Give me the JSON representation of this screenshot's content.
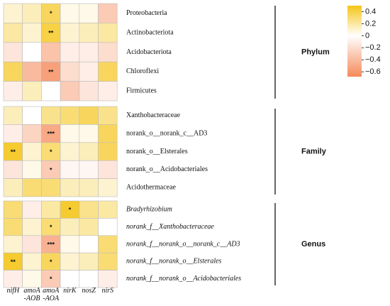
{
  "chart_data": {
    "type": "heatmap",
    "columns": [
      [
        "nifH"
      ],
      [
        "amoA",
        "-AOB"
      ],
      [
        "amoA",
        "-AOA"
      ],
      [
        "nirK"
      ],
      [
        "nosZ"
      ],
      [
        "nirS"
      ]
    ],
    "groups": [
      {
        "name": "Phylum",
        "italic": false,
        "rows": [
          {
            "label": "Proteobacteria",
            "values": [
              0.1,
              0.15,
              0.35,
              0.05,
              0.05,
              -0.3
            ],
            "significance": [
              null,
              null,
              "*",
              null,
              null,
              null
            ]
          },
          {
            "label": "Actinobacteriota",
            "values": [
              0.2,
              0.1,
              0.4,
              0.1,
              0.15,
              0.2
            ],
            "significance": [
              null,
              null,
              "**",
              null,
              null,
              null
            ]
          },
          {
            "label": "Acidobacteriota",
            "values": [
              -0.15,
              0,
              -0.35,
              -0.1,
              -0.1,
              -0.2
            ],
            "significance": [
              null,
              null,
              null,
              null,
              null,
              null
            ]
          },
          {
            "label": "Chloroflexi",
            "values": [
              0.35,
              -0.4,
              -0.55,
              -0.2,
              -0.1,
              0.35
            ],
            "significance": [
              null,
              null,
              "**",
              null,
              null,
              null
            ]
          },
          {
            "label": "Firmicutes",
            "values": [
              -0.1,
              0.15,
              0,
              -0.3,
              -0.15,
              -0.1
            ],
            "significance": [
              null,
              null,
              null,
              null,
              null,
              null
            ]
          }
        ]
      },
      {
        "name": "Family",
        "italic": false,
        "rows": [
          {
            "label": "Xanthobacteraceae",
            "values": [
              0.15,
              0,
              0.25,
              0.3,
              0.35,
              0.25
            ],
            "significance": [
              null,
              null,
              null,
              null,
              null,
              null
            ]
          },
          {
            "label": "norank_o__norank_c__AD3",
            "values": [
              -0.1,
              -0.25,
              -0.5,
              0.05,
              0.05,
              0.35
            ],
            "significance": [
              null,
              null,
              "***",
              null,
              null,
              null
            ]
          },
          {
            "label": "norank_o__Elsterales",
            "values": [
              0.45,
              0.1,
              0.3,
              0.1,
              0.15,
              0.35
            ],
            "significance": [
              "**",
              null,
              "*",
              null,
              null,
              null
            ]
          },
          {
            "label": "norank_o__Acidobacteriales",
            "values": [
              -0.15,
              0.05,
              -0.3,
              -0.05,
              -0.05,
              -0.15
            ],
            "significance": [
              null,
              null,
              "*",
              null,
              null,
              null
            ]
          },
          {
            "label": "Acidothermaceae",
            "values": [
              0.15,
              0.3,
              0.3,
              0.15,
              0.15,
              0.1
            ],
            "significance": [
              null,
              null,
              null,
              null,
              null,
              null
            ]
          }
        ]
      },
      {
        "name": "Genus",
        "italic": true,
        "rows": [
          {
            "label": "Bradyrhizobium",
            "values": [
              0.3,
              -0.1,
              0.2,
              0.45,
              0.25,
              0.2
            ],
            "significance": [
              null,
              null,
              null,
              "*",
              null,
              null
            ]
          },
          {
            "label": "norank_f__Xanthobacteraceae",
            "values": [
              0.3,
              0.1,
              0.3,
              0.15,
              0.2,
              0
            ],
            "significance": [
              null,
              null,
              "*",
              null,
              null,
              null
            ]
          },
          {
            "label": "norank_f__norank_o__norank_c__AD3",
            "values": [
              0.1,
              -0.15,
              -0.45,
              0.05,
              0,
              0.3
            ],
            "significance": [
              null,
              null,
              "***",
              null,
              null,
              null
            ]
          },
          {
            "label": "norank_f__norank_o__Elsterales",
            "values": [
              0.45,
              0.1,
              0.35,
              0.1,
              0.15,
              0.3
            ],
            "significance": [
              "**",
              null,
              "*",
              null,
              null,
              null
            ]
          },
          {
            "label": "norank_f__norank_o__Acidobacteriales",
            "values": [
              -0.1,
              0.05,
              -0.3,
              0,
              0,
              -0.1
            ],
            "significance": [
              null,
              null,
              "*",
              null,
              null,
              null
            ]
          }
        ]
      }
    ],
    "colors": {
      "high": "#f5c518",
      "mid": "#ffffff",
      "low": "#f58a5a"
    },
    "clim": [
      -0.68,
      0.5
    ],
    "cticks": [
      0.4,
      0.2,
      0,
      {
        "value": -0.2,
        "label": "−0.2"
      },
      {
        "value": -0.4,
        "label": "−0.4"
      },
      {
        "value": -0.6,
        "label": "−0.6"
      }
    ]
  }
}
